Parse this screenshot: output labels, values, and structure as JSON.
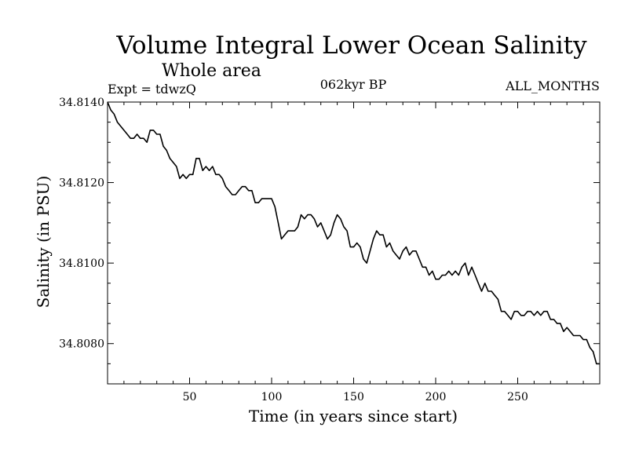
{
  "chart_data": {
    "type": "line",
    "title": "Volume Integral Lower Ocean Salinity",
    "subtitle": "Whole area",
    "annotations": {
      "left": "Expt = tdwzQ",
      "center": "062kyr BP",
      "right": "ALL_MONTHS"
    },
    "xlabel": "Time (in years since start)",
    "ylabel": "Salinity (in PSU)",
    "xlim": [
      0,
      300
    ],
    "ylim": [
      34.807,
      34.814
    ],
    "xticks": [
      50,
      100,
      150,
      200,
      250
    ],
    "xtick_labels": [
      "50",
      "100",
      "150",
      "200",
      "250"
    ],
    "yticks": [
      34.808,
      34.81,
      34.812,
      34.814
    ],
    "ytick_labels": [
      "34.8080",
      "34.8100",
      "34.8120",
      "34.8140"
    ],
    "grid": false,
    "series": [
      {
        "x": [
          0,
          2,
          4,
          6,
          8,
          10,
          12,
          14,
          16,
          18,
          20,
          22,
          24,
          26,
          28,
          30,
          32,
          34,
          36,
          38,
          40,
          42,
          44,
          46,
          48,
          50,
          52,
          54,
          56,
          58,
          60,
          62,
          64,
          66,
          68,
          70,
          72,
          74,
          76,
          78,
          80,
          82,
          84,
          86,
          88,
          90,
          92,
          94,
          96,
          98,
          100,
          102,
          104,
          106,
          108,
          110,
          112,
          114,
          116,
          118,
          120,
          122,
          124,
          126,
          128,
          130,
          132,
          134,
          136,
          138,
          140,
          142,
          144,
          146,
          148,
          150,
          152,
          154,
          156,
          158,
          160,
          162,
          164,
          166,
          168,
          170,
          172,
          174,
          176,
          178,
          180,
          182,
          184,
          186,
          188,
          190,
          192,
          194,
          196,
          198,
          200,
          202,
          204,
          206,
          208,
          210,
          212,
          214,
          216,
          218,
          220,
          222,
          224,
          226,
          228,
          230,
          232,
          234,
          236,
          238,
          240,
          242,
          244,
          246,
          248,
          250,
          252,
          254,
          256,
          258,
          260,
          262,
          264,
          266,
          268,
          270,
          272,
          274,
          276,
          278,
          280,
          282,
          284,
          286,
          288,
          290,
          292,
          294,
          296,
          298,
          300
        ],
        "values": [
          34.814,
          34.8138,
          34.8137,
          34.8135,
          34.8134,
          34.8133,
          34.8132,
          34.8131,
          34.8131,
          34.8132,
          34.8131,
          34.8131,
          34.813,
          34.8133,
          34.8133,
          34.8132,
          34.8132,
          34.8129,
          34.8128,
          34.8126,
          34.8125,
          34.8124,
          34.8121,
          34.8122,
          34.8121,
          34.8122,
          34.8122,
          34.8126,
          34.8126,
          34.8123,
          34.8124,
          34.8123,
          34.8124,
          34.8122,
          34.8122,
          34.8121,
          34.8119,
          34.8118,
          34.8117,
          34.8117,
          34.8118,
          34.8119,
          34.8119,
          34.8118,
          34.8118,
          34.8115,
          34.8115,
          34.8116,
          34.8116,
          34.8116,
          34.8116,
          34.8114,
          34.811,
          34.8106,
          34.8107,
          34.8108,
          34.8108,
          34.8108,
          34.8109,
          34.8112,
          34.8111,
          34.8112,
          34.8112,
          34.8111,
          34.8109,
          34.811,
          34.8108,
          34.8106,
          34.8107,
          34.811,
          34.8112,
          34.8111,
          34.8109,
          34.8108,
          34.8104,
          34.8104,
          34.8105,
          34.8104,
          34.8101,
          34.81,
          34.8103,
          34.8106,
          34.8108,
          34.8107,
          34.8107,
          34.8104,
          34.8105,
          34.8103,
          34.8102,
          34.8101,
          34.8103,
          34.8104,
          34.8102,
          34.8103,
          34.8103,
          34.8101,
          34.8099,
          34.8099,
          34.8097,
          34.8098,
          34.8096,
          34.8096,
          34.8097,
          34.8097,
          34.8098,
          34.8097,
          34.8098,
          34.8097,
          34.8099,
          34.81,
          34.8097,
          34.8099,
          34.8097,
          34.8095,
          34.8093,
          34.8095,
          34.8093,
          34.8093,
          34.8092,
          34.8091,
          34.8088,
          34.8088,
          34.8087,
          34.8086,
          34.8088,
          34.8088,
          34.8087,
          34.8087,
          34.8088,
          34.8088,
          34.8087,
          34.8088,
          34.8087,
          34.8088,
          34.8088,
          34.8086,
          34.8086,
          34.8085,
          34.8085,
          34.8083,
          34.8084,
          34.8083,
          34.8082,
          34.8082,
          34.8082,
          34.8081,
          34.8081,
          34.8079,
          34.8078,
          34.8075,
          34.8075
        ]
      }
    ]
  }
}
